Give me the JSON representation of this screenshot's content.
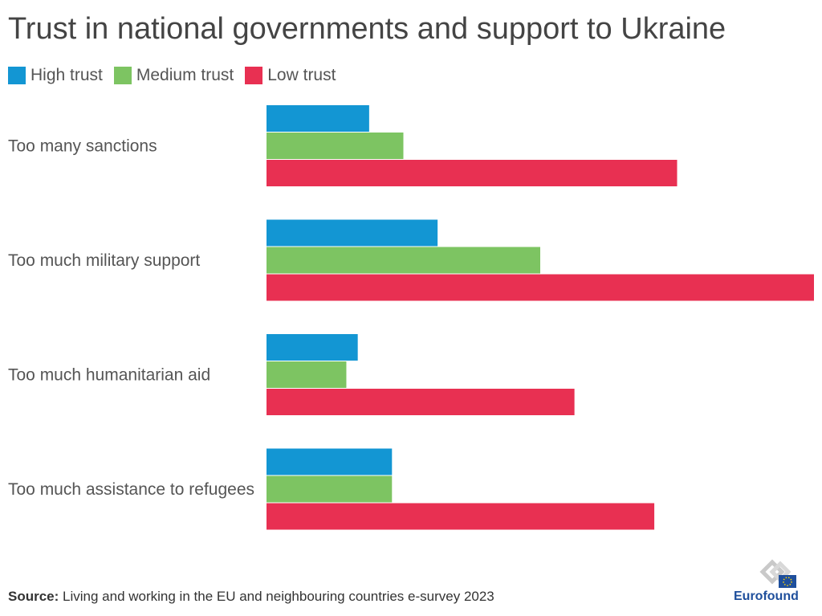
{
  "chart_data": {
    "type": "bar",
    "orientation": "horizontal",
    "title": "Trust in national governments and support to Ukraine",
    "categories": [
      "Too many sanctions",
      "Too much military support",
      "Too much humanitarian aid",
      "Too much assistance to refugees"
    ],
    "series": [
      {
        "name": "High trust",
        "color": "#1396d3",
        "values": [
          9,
          15,
          8,
          11
        ]
      },
      {
        "name": "Medium trust",
        "color": "#7dc462",
        "values": [
          12,
          24,
          7,
          11
        ]
      },
      {
        "name": "Low trust",
        "color": "#e83052",
        "values": [
          36,
          48,
          27,
          34
        ]
      }
    ],
    "xlim": [
      0,
      48
    ],
    "grid": false,
    "legend_position": "top-left"
  },
  "source": {
    "label": "Source:",
    "text": "Living and working in the EU and neighbouring countries e-survey 2023"
  },
  "logo": {
    "name": "Eurofound"
  }
}
